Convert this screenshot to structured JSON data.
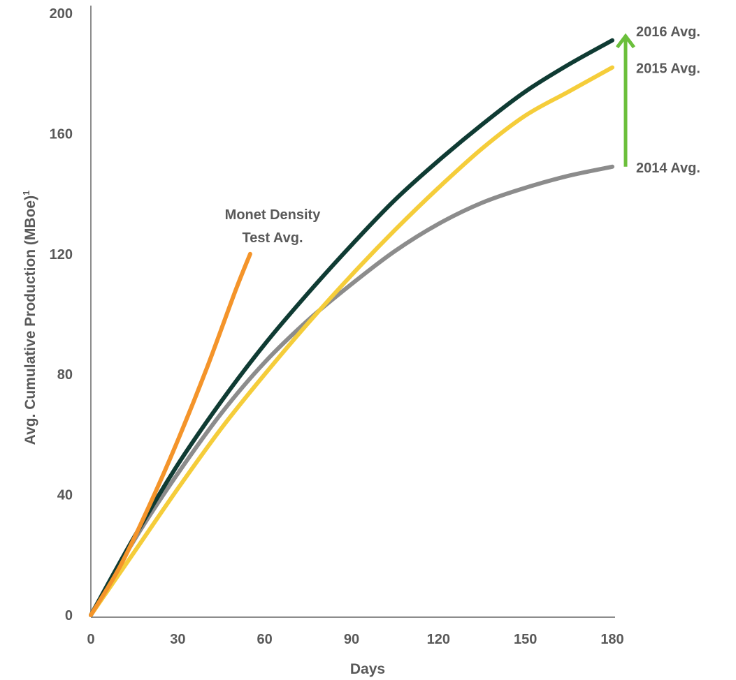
{
  "chart_data": {
    "type": "line",
    "title": "",
    "xlabel": "Days",
    "ylabel": "Avg. Cumulative Production (MBoe)",
    "ylabel_superscript": "1",
    "xlim": [
      0,
      180
    ],
    "ylim": [
      0,
      200
    ],
    "x_ticks": [
      "0",
      "30",
      "60",
      "90",
      "120",
      "150",
      "180"
    ],
    "y_ticks": [
      "0",
      "40",
      "80",
      "120",
      "160",
      "200"
    ],
    "grid": false,
    "legend": "none",
    "series": [
      {
        "name": "2014 Avg.",
        "color": "#8c8c8c",
        "x": [
          0,
          15,
          30,
          45,
          60,
          75,
          90,
          105,
          120,
          135,
          150,
          165,
          180
        ],
        "y": [
          0,
          25,
          47,
          67,
          84,
          98,
          110,
          121,
          130,
          137,
          142,
          146,
          149
        ]
      },
      {
        "name": "2015 Avg.",
        "color": "#f5cd3a",
        "x": [
          0,
          15,
          30,
          45,
          60,
          75,
          90,
          105,
          120,
          135,
          150,
          165,
          180
        ],
        "y": [
          0,
          21,
          42,
          62,
          80,
          97,
          113,
          128,
          142,
          155,
          166,
          174,
          182
        ]
      },
      {
        "name": "2016 Avg.",
        "color": "#0f3b33",
        "x": [
          0,
          15,
          30,
          45,
          60,
          75,
          90,
          105,
          120,
          135,
          150,
          165,
          180
        ],
        "y": [
          0,
          26,
          50,
          71,
          90,
          107,
          123,
          138,
          151,
          163,
          174,
          183,
          191
        ]
      },
      {
        "name": "Monet Density Test Avg.",
        "color": "#f4942a",
        "x": [
          0,
          10,
          20,
          30,
          40,
          50,
          55
        ],
        "y": [
          0,
          16,
          36,
          58,
          82,
          108,
          120
        ]
      }
    ],
    "annotations": [
      {
        "text": "Monet Density",
        "series_index": 3
      },
      {
        "text": "Test Avg.",
        "series_index": 3
      }
    ],
    "improvement_arrow": {
      "color": "#6bbf3b",
      "from_series": "2014 Avg.",
      "to_series": "2016 Avg."
    }
  }
}
